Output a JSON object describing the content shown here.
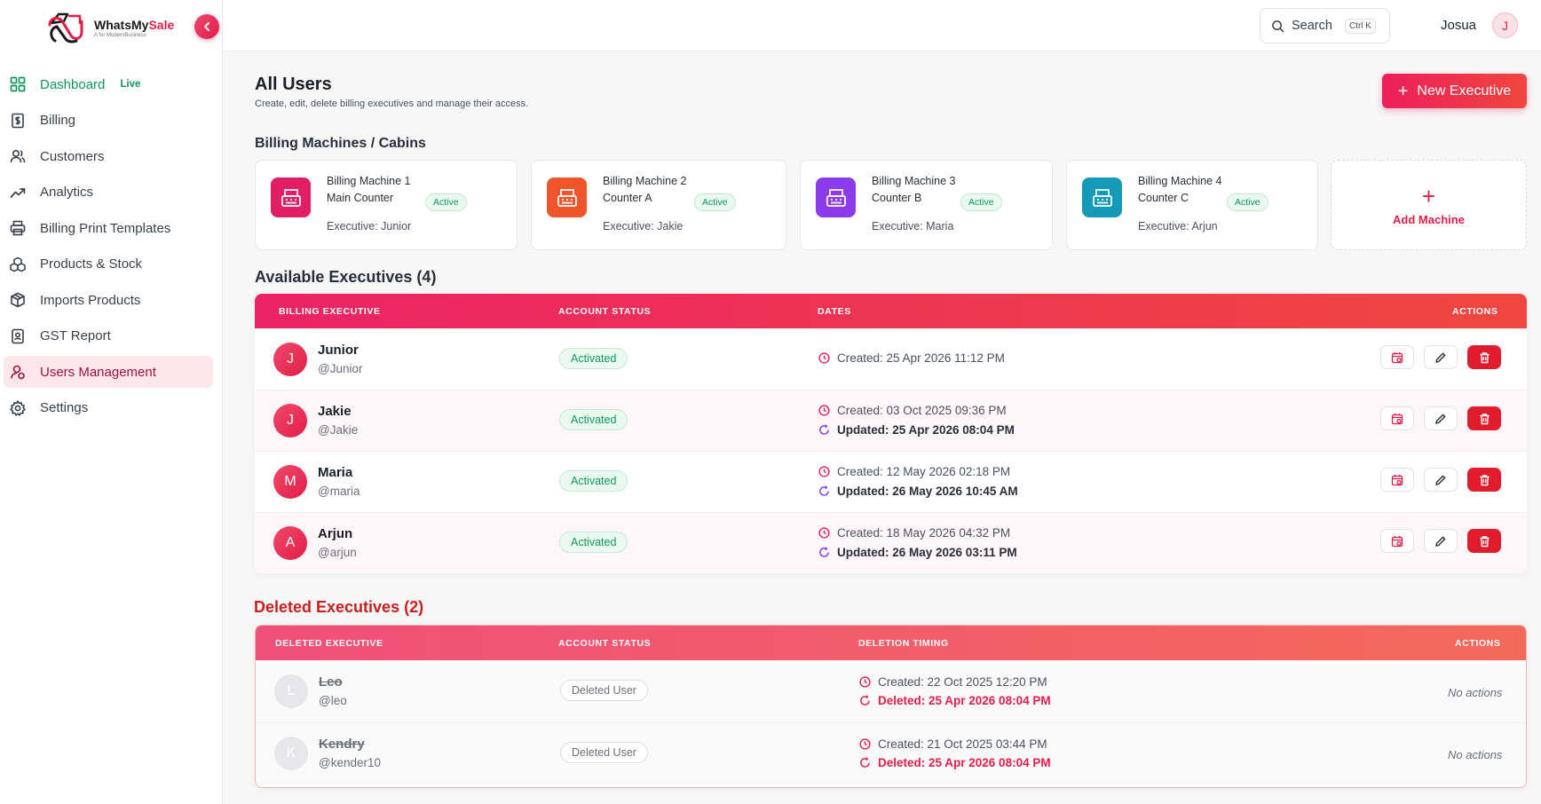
{
  "app": {
    "brand_a": "WhatsMy",
    "brand_b": "Sale",
    "tagline": "A for ModernBusiness"
  },
  "sidebar": {
    "items": [
      {
        "label": "Dashboard",
        "icon": "grid-icon"
      },
      {
        "label": "Billing",
        "icon": "receipt-icon"
      },
      {
        "label": "Customers",
        "icon": "users-icon"
      },
      {
        "label": "Analytics",
        "icon": "trend-icon"
      },
      {
        "label": "Billing Print Templates",
        "icon": "printer-icon"
      },
      {
        "label": "Products & Stock",
        "icon": "boxes-icon"
      },
      {
        "label": "Imports Products",
        "icon": "package-icon"
      },
      {
        "label": "GST Report",
        "icon": "report-icon"
      },
      {
        "label": "Users Management",
        "icon": "user-manage-icon"
      },
      {
        "label": "Settings",
        "icon": "gear-icon"
      }
    ],
    "live_badge": "Live",
    "active_item": "Users Management"
  },
  "topbar": {
    "search_label": "Search",
    "search_shortcut": "Ctrl K",
    "user_name": "Josua",
    "user_initial": "J"
  },
  "header": {
    "title": "All Users",
    "subtitle": "Create, edit, delete billing executives and manage their access.",
    "new_button": "New Executive"
  },
  "machines_section": {
    "title": "Billing Machines / Cabins",
    "machines": [
      {
        "name": "Billing Machine 1",
        "location": "Main Counter",
        "status": "Active",
        "executive": "Executive: Junior",
        "color": "#e11d63"
      },
      {
        "name": "Billing Machine 2",
        "location": "Counter A",
        "status": "Active",
        "executive": "Executive: Jakie",
        "color": "#f0542b"
      },
      {
        "name": "Billing Machine 3",
        "location": "Counter B",
        "status": "Active",
        "executive": "Executive: Maria",
        "color": "#8b3bea"
      },
      {
        "name": "Billing Machine 4",
        "location": "Counter C",
        "status": "Active",
        "executive": "Executive: Arjun",
        "color": "#1599b8"
      }
    ],
    "add_label": "Add Machine"
  },
  "available": {
    "title": "Available Executives (4)",
    "columns": [
      "BILLING EXECUTIVE",
      "ACCOUNT STATUS",
      "DATES",
      "ACTIONS"
    ],
    "rows": [
      {
        "initial": "J",
        "name": "Junior",
        "handle": "@Junior",
        "status": "Activated",
        "created": "Created: 25 Apr 2026 11:12 PM",
        "updated": ""
      },
      {
        "initial": "J",
        "name": "Jakie",
        "handle": "@Jakie",
        "status": "Activated",
        "created": "Created: 03 Oct 2025 09:36 PM",
        "updated": "Updated: 25 Apr 2026 08:04 PM"
      },
      {
        "initial": "M",
        "name": "Maria",
        "handle": "@maria",
        "status": "Activated",
        "created": "Created: 12 May 2026 02:18 PM",
        "updated": "Updated: 26 May 2026 10:45 AM"
      },
      {
        "initial": "A",
        "name": "Arjun",
        "handle": "@arjun",
        "status": "Activated",
        "created": "Created: 18 May 2026 04:32 PM",
        "updated": "Updated: 26 May 2026 03:11 PM"
      }
    ]
  },
  "deleted": {
    "title": "Deleted Executives (2)",
    "columns": [
      "DELETED EXECUTIVE",
      "ACCOUNT STATUS",
      "DELETION TIMING",
      "ACTIONS"
    ],
    "rows": [
      {
        "initial": "L",
        "name": "Leo",
        "handle": "@leo",
        "status": "Deleted User",
        "created": "Created: 22 Oct 2025 12:20 PM",
        "deleted": "Deleted: 25 Apr 2026 08:04 PM",
        "actions": "No actions"
      },
      {
        "initial": "K",
        "name": "Kendry",
        "handle": "@kender10",
        "status": "Deleted User",
        "created": "Created: 21 Oct 2025 03:44 PM",
        "deleted": "Deleted: 25 Apr 2026 08:04 PM",
        "actions": "No actions"
      }
    ]
  },
  "colors": {
    "accent": "#e11d48",
    "success": "#12965c",
    "danger": "#e11d2d"
  }
}
